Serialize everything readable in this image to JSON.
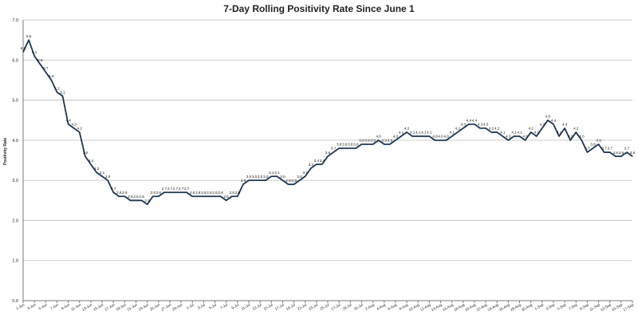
{
  "chart_data": {
    "type": "line",
    "title": "7-Day Rolling Positivity Rate Since June 1",
    "xlabel": "",
    "ylabel": "Positivity Rate",
    "ylim": [
      0.0,
      7.0
    ],
    "yticks": [
      "0.0",
      "1.0",
      "2.0",
      "3.0",
      "4.0",
      "5.0",
      "6.0",
      "7.0"
    ],
    "grid": true,
    "x_tick_labels": [
      "1-Jun",
      "3-Jun",
      "5-Jun",
      "7-Jun",
      "9-Jun",
      "11-Jun",
      "13-Jun",
      "15-Jun",
      "17-Jun",
      "19-Jun",
      "21-Jun",
      "23-Jun",
      "25-Jun",
      "27-Jun",
      "29-Jun",
      "1-Jul",
      "3-Jul",
      "5-Jul",
      "7-Jul",
      "9-Jul",
      "11-Jul",
      "13-Jul",
      "15-Jul",
      "17-Jul",
      "19-Jul",
      "21-Jul",
      "23-Jul",
      "25-Jul",
      "27-Jul",
      "29-Jul",
      "31-Jul",
      "2-Aug",
      "4-Aug",
      "6-Aug",
      "8-Aug",
      "10-Aug",
      "12-Aug",
      "14-Aug",
      "16-Aug",
      "18-Aug",
      "20-Aug",
      "22-Aug",
      "24-Aug",
      "26-Aug",
      "28-Aug",
      "30-Aug",
      "1-Sep",
      "3-Sep",
      "5-Sep",
      "7-Sep",
      "9-Sep",
      "11-Sep",
      "13-Sep",
      "15-Sep",
      "17-Sep"
    ],
    "series": [
      {
        "values": [
          6.2,
          6.5,
          6.1,
          5.9,
          5.7,
          5.5,
          5.2,
          5.1,
          4.4,
          4.3,
          4.2,
          3.6,
          3.4,
          3.2,
          3.1,
          3.0,
          2.7,
          2.6,
          2.6,
          2.5,
          2.5,
          2.5,
          2.4,
          2.6,
          2.6,
          2.7,
          2.7,
          2.7,
          2.7,
          2.7,
          2.6,
          2.6,
          2.6,
          2.6,
          2.6,
          2.6,
          2.5,
          2.6,
          2.6,
          2.9,
          3.0,
          3.0,
          3.0,
          3.0,
          3.1,
          3.1,
          3.0,
          2.9,
          2.9,
          3.0,
          3.1,
          3.3,
          3.4,
          3.4,
          3.6,
          3.7,
          3.8,
          3.8,
          3.8,
          3.8,
          3.9,
          3.9,
          3.9,
          4.0,
          3.9,
          3.9,
          4.0,
          4.1,
          4.2,
          4.1,
          4.1,
          4.1,
          4.1,
          4.0,
          4.0,
          4.0,
          4.1,
          4.2,
          4.3,
          4.4,
          4.4,
          4.3,
          4.3,
          4.2,
          4.2,
          4.1,
          4.0,
          4.1,
          4.1,
          4.0,
          4.2,
          4.1,
          4.3,
          4.5,
          4.4,
          4.1,
          4.3,
          4.0,
          4.2,
          4.0,
          3.7,
          3.8,
          3.9,
          3.7,
          3.7,
          3.6,
          3.6,
          3.7,
          3.6
        ]
      }
    ]
  }
}
